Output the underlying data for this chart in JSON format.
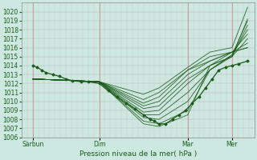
{
  "xlabel": "Pression niveau de la mer( hPa )",
  "ylim": [
    1006,
    1021
  ],
  "yticks": [
    1006,
    1007,
    1008,
    1009,
    1010,
    1011,
    1012,
    1013,
    1014,
    1015,
    1016,
    1017,
    1018,
    1019,
    1020
  ],
  "background_color": "#cce8e0",
  "grid_color_h": "#b0b0b0",
  "grid_color_v_major": "#c8a0a0",
  "grid_color_v_minor": "#ddc0c0",
  "line_color": "#1a5c1a",
  "figsize": [
    3.2,
    2.0
  ],
  "dpi": 100,
  "xlim": [
    0,
    10.5
  ],
  "day_positions": [
    0.5,
    3.5,
    7.5,
    9.5
  ],
  "day_labels": [
    "Sàrbun",
    "Dim",
    "Mar",
    "Mer"
  ],
  "vline_major": [
    0.5,
    3.5,
    7.5,
    9.5
  ],
  "origin_x": 0.5,
  "origin_y": 1012.5,
  "ensemble_lines": [
    {
      "x": [
        0.5,
        3.5,
        5.5,
        6.2,
        7.5,
        8.5,
        9.5,
        10.2
      ],
      "y": [
        1012.5,
        1012.2,
        1007.5,
        1007.2,
        1008.5,
        1014.0,
        1015.0,
        1019.2
      ]
    },
    {
      "x": [
        0.5,
        3.5,
        5.5,
        6.2,
        7.5,
        8.5,
        9.5,
        10.2
      ],
      "y": [
        1012.5,
        1012.2,
        1007.8,
        1007.5,
        1009.0,
        1013.5,
        1015.2,
        1019.0
      ]
    },
    {
      "x": [
        0.5,
        3.5,
        5.5,
        6.2,
        7.5,
        8.5,
        9.5,
        10.2
      ],
      "y": [
        1012.5,
        1012.2,
        1008.2,
        1008.0,
        1010.0,
        1013.5,
        1015.0,
        1018.5
      ]
    },
    {
      "x": [
        0.5,
        3.5,
        5.5,
        6.2,
        7.5,
        8.5,
        9.5,
        10.2
      ],
      "y": [
        1012.5,
        1012.2,
        1008.5,
        1008.5,
        1011.0,
        1013.5,
        1015.2,
        1018.0
      ]
    },
    {
      "x": [
        0.5,
        3.5,
        5.5,
        6.2,
        7.5,
        8.5,
        9.5,
        10.2
      ],
      "y": [
        1012.5,
        1012.2,
        1008.8,
        1009.0,
        1012.0,
        1014.0,
        1015.5,
        1017.5
      ]
    },
    {
      "x": [
        0.5,
        3.5,
        5.5,
        6.2,
        7.5,
        8.5,
        9.5,
        10.2
      ],
      "y": [
        1012.5,
        1012.2,
        1009.2,
        1009.5,
        1012.5,
        1014.0,
        1015.0,
        1017.0
      ]
    },
    {
      "x": [
        0.5,
        3.5,
        5.5,
        6.2,
        7.5,
        8.5,
        9.5,
        10.2
      ],
      "y": [
        1012.5,
        1012.2,
        1009.5,
        1010.0,
        1013.0,
        1014.5,
        1015.5,
        1016.5
      ]
    },
    {
      "x": [
        0.5,
        3.5,
        5.5,
        6.2,
        7.5,
        8.5,
        9.5,
        10.2
      ],
      "y": [
        1012.5,
        1012.2,
        1009.8,
        1010.5,
        1013.5,
        1014.5,
        1015.5,
        1016.0
      ]
    },
    {
      "x": [
        0.5,
        3.5,
        5.5,
        6.2,
        7.5,
        8.5,
        9.5,
        10.2
      ],
      "y": [
        1012.5,
        1012.2,
        1010.2,
        1011.0,
        1013.5,
        1015.0,
        1015.5,
        1016.0
      ]
    },
    {
      "x": [
        0.5,
        3.5,
        5.5,
        6.2,
        7.5,
        8.5,
        9.5,
        10.2
      ],
      "y": [
        1012.5,
        1012.2,
        1010.8,
        1011.5,
        1013.8,
        1015.5,
        1016.0,
        1020.5
      ]
    }
  ],
  "main_line_x": [
    0.5,
    0.7,
    0.9,
    1.1,
    1.4,
    1.7,
    2.0,
    2.3,
    2.7,
    3.0,
    3.5,
    3.9,
    4.3,
    4.7,
    5.1,
    5.5,
    5.8,
    6.0,
    6.2,
    6.5,
    6.8,
    7.1,
    7.4,
    7.7,
    8.0,
    8.3,
    8.6,
    8.9,
    9.2,
    9.5,
    9.8,
    10.2
  ],
  "main_line_y": [
    1014.0,
    1013.8,
    1013.5,
    1013.2,
    1013.0,
    1012.8,
    1012.5,
    1012.3,
    1012.2,
    1012.2,
    1012.0,
    1011.2,
    1010.5,
    1009.8,
    1009.2,
    1008.5,
    1008.0,
    1007.8,
    1007.5,
    1007.5,
    1008.0,
    1008.5,
    1009.0,
    1009.8,
    1010.5,
    1011.5,
    1012.5,
    1013.5,
    1013.8,
    1014.0,
    1014.2,
    1014.5
  ]
}
